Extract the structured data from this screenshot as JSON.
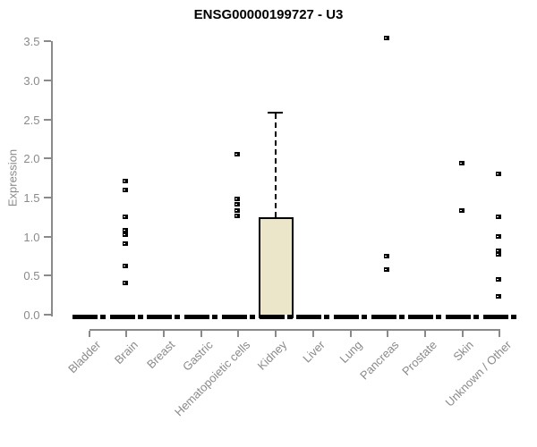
{
  "page": {
    "title": "ENSG00000199727 - U3"
  },
  "chart_data": {
    "type": "boxplot",
    "title": "ENSG00000199727 - U3",
    "ylabel": "Expression",
    "xlabel": "",
    "ylim": [
      0,
      3.5
    ],
    "ytick_step": 0.5,
    "ytick_labels": [
      "0.0",
      "0.5",
      "1.0",
      "1.5",
      "2.0",
      "2.5",
      "3.0",
      "3.5"
    ],
    "grid": false,
    "legend": "none",
    "box_fill_color": "#EBE5C9",
    "box_line_color": "#000000",
    "axis_color": "#8a8a8a",
    "categories": [
      "Bladder",
      "Brain",
      "Breast",
      "Gastric",
      "Hematopoietic cells",
      "Kidney",
      "Liver",
      "Lung",
      "Pancreas",
      "Prostate",
      "Skin",
      "Unknown / Other"
    ],
    "series": [
      {
        "category": "Bladder",
        "median": 0.02,
        "q1": 0,
        "q3": 0.04,
        "whisker_low": 0,
        "whisker_high": 0.04,
        "outliers": []
      },
      {
        "category": "Brain",
        "median": 0.02,
        "q1": 0,
        "q3": 0.04,
        "whisker_low": 0,
        "whisker_high": 0.04,
        "outliers": [
          1.71,
          1.6,
          1.25,
          1.08,
          1.03,
          0.91,
          0.62,
          0.41
        ]
      },
      {
        "category": "Breast",
        "median": 0.02,
        "q1": 0,
        "q3": 0.04,
        "whisker_low": 0,
        "whisker_high": 0.04,
        "outliers": []
      },
      {
        "category": "Gastric",
        "median": 0.02,
        "q1": 0,
        "q3": 0.04,
        "whisker_low": 0,
        "whisker_high": 0.04,
        "outliers": []
      },
      {
        "category": "Hematopoietic cells",
        "median": 0.02,
        "q1": 0,
        "q3": 0.04,
        "whisker_low": 0,
        "whisker_high": 0.04,
        "outliers": [
          2.06,
          1.48,
          1.41,
          1.34,
          1.27
        ]
      },
      {
        "category": "Kidney",
        "median": 0.02,
        "q1": 0,
        "q3": 1.25,
        "whisker_low": 0,
        "whisker_high": 2.6,
        "outliers": []
      },
      {
        "category": "Liver",
        "median": 0.02,
        "q1": 0,
        "q3": 0.04,
        "whisker_low": 0,
        "whisker_high": 0.04,
        "outliers": []
      },
      {
        "category": "Lung",
        "median": 0.02,
        "q1": 0,
        "q3": 0.04,
        "whisker_low": 0,
        "whisker_high": 0.04,
        "outliers": []
      },
      {
        "category": "Pancreas",
        "median": 0.02,
        "q1": 0,
        "q3": 0.04,
        "whisker_low": 0,
        "whisker_high": 0.04,
        "outliers": [
          3.55,
          0.75,
          0.58
        ]
      },
      {
        "category": "Prostate",
        "median": 0.02,
        "q1": 0,
        "q3": 0.04,
        "whisker_low": 0,
        "whisker_high": 0.04,
        "outliers": []
      },
      {
        "category": "Skin",
        "median": 0.02,
        "q1": 0,
        "q3": 0.04,
        "whisker_low": 0,
        "whisker_high": 0.04,
        "outliers": [
          1.94,
          1.33
        ]
      },
      {
        "category": "Unknown / Other",
        "median": 0.02,
        "q1": 0,
        "q3": 0.04,
        "whisker_low": 0,
        "whisker_high": 0.04,
        "outliers": [
          1.8,
          1.25,
          1.0,
          0.82,
          0.77,
          0.45,
          0.23
        ]
      }
    ]
  }
}
